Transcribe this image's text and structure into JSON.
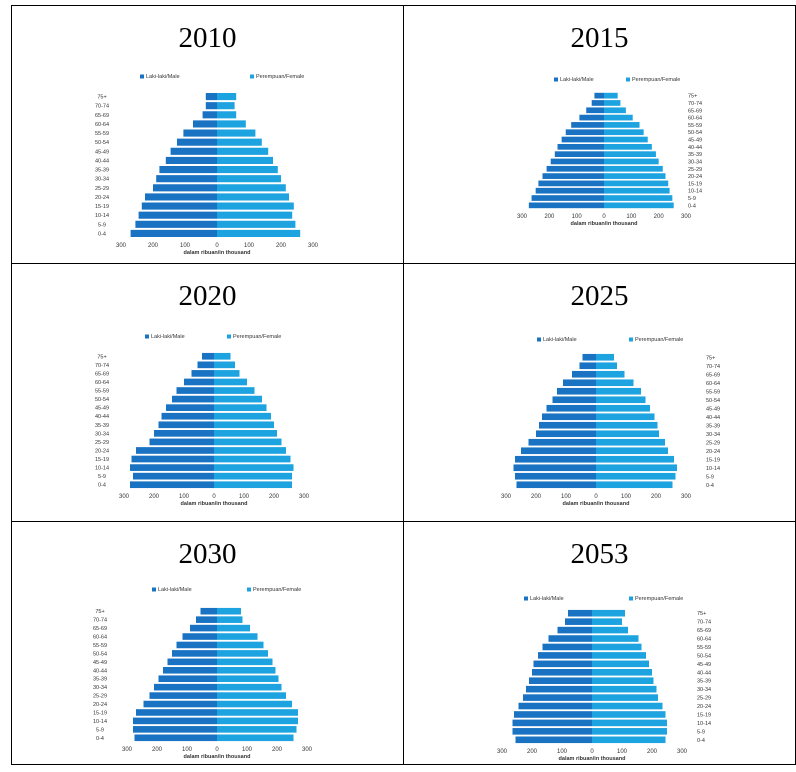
{
  "chart_data": [
    {
      "type": "bar",
      "orientation": "horizontal",
      "title": "2010",
      "categories": [
        "0-4",
        "5-9",
        "10-14",
        "15-19",
        "20-24",
        "25-29",
        "30-34",
        "35-39",
        "40-44",
        "45-49",
        "50-54",
        "55-59",
        "60-64",
        "65-69",
        "70-74",
        "75+"
      ],
      "series": [
        {
          "name": "Laki-laki/Male",
          "color": "#1a73c2",
          "values": [
            270,
            255,
            245,
            235,
            225,
            200,
            190,
            180,
            160,
            145,
            125,
            105,
            75,
            45,
            35,
            35
          ]
        },
        {
          "name": "Perempuan/Female",
          "color": "#1da3df",
          "values": [
            260,
            245,
            235,
            240,
            225,
            215,
            200,
            190,
            175,
            160,
            140,
            120,
            90,
            60,
            55,
            60
          ]
        }
      ],
      "xlabel": "dalam ribuan/in thousand",
      "xticks": [
        "300",
        "200",
        "100",
        "0",
        "100",
        "200",
        "300"
      ],
      "xlim": [
        -300,
        300
      ],
      "label_side": "left",
      "legend": "top"
    },
    {
      "type": "bar",
      "orientation": "horizontal",
      "title": "2015",
      "categories": [
        "0-4",
        "5-9",
        "10-14",
        "15-19",
        "20-24",
        "25-29",
        "30-34",
        "35-39",
        "40-44",
        "45-49",
        "50-54",
        "55-59",
        "60-64",
        "65-69",
        "70-74",
        "75+"
      ],
      "series": [
        {
          "name": "Laki-laki/Male",
          "color": "#1a73c2",
          "values": [
            275,
            265,
            250,
            240,
            225,
            210,
            195,
            180,
            170,
            155,
            140,
            120,
            90,
            65,
            45,
            35
          ]
        },
        {
          "name": "Perempuan/Female",
          "color": "#1da3df",
          "values": [
            255,
            250,
            240,
            235,
            225,
            215,
            200,
            190,
            175,
            160,
            145,
            130,
            105,
            80,
            60,
            50
          ]
        }
      ],
      "xlabel": "dalam ribuan/in thousand",
      "xticks": [
        "300",
        "200",
        "100",
        "0",
        "100",
        "200",
        "300"
      ],
      "xlim": [
        -300,
        300
      ],
      "label_side": "right",
      "legend": "top"
    },
    {
      "type": "bar",
      "orientation": "horizontal",
      "title": "2020",
      "categories": [
        "0-4",
        "5-9",
        "10-14",
        "15-19",
        "20-24",
        "25-29",
        "30-34",
        "35-39",
        "40-44",
        "45-49",
        "50-54",
        "55-59",
        "60-64",
        "65-69",
        "70-74",
        "75+"
      ],
      "series": [
        {
          "name": "Laki-laki/Male",
          "color": "#1a73c2",
          "values": [
            280,
            270,
            280,
            275,
            260,
            215,
            200,
            185,
            175,
            160,
            140,
            125,
            100,
            75,
            55,
            40
          ]
        },
        {
          "name": "Perempuan/Female",
          "color": "#1da3df",
          "values": [
            260,
            260,
            265,
            255,
            240,
            225,
            210,
            200,
            190,
            175,
            160,
            135,
            110,
            85,
            70,
            55
          ]
        }
      ],
      "xlabel": "dalam ribuan/in thousand",
      "xticks": [
        "300",
        "200",
        "100",
        "0",
        "100",
        "200",
        "300"
      ],
      "xlim": [
        -300,
        300
      ],
      "label_side": "left",
      "legend": "top"
    },
    {
      "type": "bar",
      "orientation": "horizontal",
      "title": "2025",
      "categories": [
        "0-4",
        "5-9",
        "10-14",
        "15-19",
        "20-24",
        "25-29",
        "30-34",
        "35-39",
        "40-44",
        "45-49",
        "50-54",
        "55-59",
        "60-64",
        "65-69",
        "70-74",
        "75+"
      ],
      "series": [
        {
          "name": "Laki-laki/Male",
          "color": "#1a73c2",
          "values": [
            265,
            270,
            275,
            270,
            250,
            225,
            200,
            190,
            180,
            165,
            145,
            130,
            110,
            80,
            55,
            45
          ]
        },
        {
          "name": "Perempuan/Female",
          "color": "#1da3df",
          "values": [
            255,
            265,
            270,
            260,
            240,
            230,
            210,
            205,
            195,
            180,
            165,
            150,
            125,
            95,
            70,
            60
          ]
        }
      ],
      "xlabel": "dalam ribuan/in thousand",
      "xticks": [
        "300",
        "200",
        "100",
        "0",
        "100",
        "200",
        "300"
      ],
      "xlim": [
        -300,
        300
      ],
      "label_side": "right",
      "legend": "top"
    },
    {
      "type": "bar",
      "orientation": "horizontal",
      "title": "2030",
      "categories": [
        "0-4",
        "5-9",
        "10-14",
        "15-19",
        "20-24",
        "25-29",
        "30-34",
        "35-39",
        "40-44",
        "45-49",
        "50-54",
        "55-59",
        "60-64",
        "65-69",
        "70-74",
        "75+"
      ],
      "series": [
        {
          "name": "Laki-laki/Male",
          "color": "#1a73c2",
          "values": [
            275,
            280,
            280,
            270,
            245,
            225,
            210,
            195,
            180,
            165,
            150,
            135,
            115,
            90,
            70,
            55
          ]
        },
        {
          "name": "Perempuan/Female",
          "color": "#1da3df",
          "values": [
            255,
            265,
            270,
            270,
            250,
            230,
            215,
            205,
            195,
            185,
            170,
            155,
            135,
            110,
            85,
            80
          ]
        }
      ],
      "xlabel": "dalam ribuan/in thousand",
      "xticks": [
        "300",
        "200",
        "100",
        "0",
        "100",
        "200",
        "300"
      ],
      "xlim": [
        -300,
        300
      ],
      "label_side": "left",
      "legend": "top"
    },
    {
      "type": "bar",
      "orientation": "horizontal",
      "title": "2053",
      "categories": [
        "0-4",
        "5-9",
        "10-14",
        "15-19",
        "20-24",
        "25-29",
        "30-34",
        "35-39",
        "40-44",
        "45-49",
        "50-54",
        "55-59",
        "60-64",
        "65-69",
        "70-74",
        "75+"
      ],
      "series": [
        {
          "name": "Laki-laki/Male",
          "color": "#1a73c2",
          "values": [
            255,
            265,
            265,
            260,
            245,
            230,
            220,
            210,
            200,
            195,
            180,
            165,
            145,
            115,
            90,
            80
          ]
        },
        {
          "name": "Perempuan/Female",
          "color": "#1da3df",
          "values": [
            245,
            250,
            250,
            245,
            235,
            220,
            215,
            205,
            200,
            190,
            180,
            165,
            155,
            120,
            100,
            110
          ]
        }
      ],
      "xlabel": "dalam ribuan/in thousand",
      "xticks": [
        "300",
        "200",
        "100",
        "0",
        "100",
        "200",
        "300"
      ],
      "xlim": [
        -300,
        300
      ],
      "label_side": "right",
      "legend": "top"
    }
  ]
}
